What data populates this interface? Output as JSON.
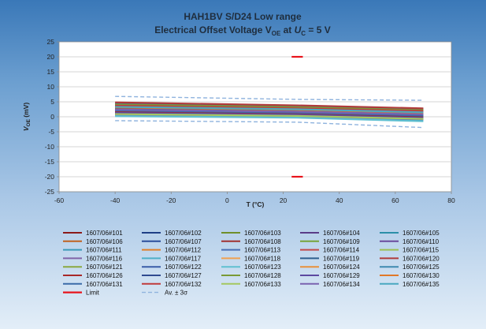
{
  "chart_data": {
    "type": "line",
    "title": "HAH1BV S/D24 Low range",
    "subtitle_parts": [
      "Electrical Offset Voltage V",
      "OE",
      "  at ",
      "U",
      "C",
      " = 5 V"
    ],
    "xlabel": "T (°C)",
    "ylabel_parts": [
      "V",
      "OE",
      " (mV)"
    ],
    "xlim": [
      -60,
      80
    ],
    "ylim": [
      -25,
      25
    ],
    "xticks": [
      -60,
      -40,
      -20,
      0,
      20,
      40,
      60,
      80
    ],
    "yticks": [
      -25,
      -20,
      -15,
      -10,
      -5,
      0,
      5,
      10,
      15,
      20,
      25
    ],
    "grid": true,
    "legend_position": "bottom",
    "x": [
      -40,
      25,
      70
    ],
    "series": [
      {
        "name": "1607/06#101",
        "color": "#8b1a1a",
        "values": [
          3.5,
          2.5,
          1.5
        ]
      },
      {
        "name": "1607/06#102",
        "color": "#1f3f86",
        "values": [
          2.0,
          1.2,
          0.5
        ]
      },
      {
        "name": "1607/06#103",
        "color": "#6f8f2a",
        "values": [
          4.0,
          3.0,
          2.0
        ]
      },
      {
        "name": "1607/06#104",
        "color": "#5a3c88",
        "values": [
          1.5,
          0.8,
          -0.2
        ]
      },
      {
        "name": "1607/06#105",
        "color": "#2b8fa8",
        "values": [
          3.0,
          2.2,
          1.0
        ]
      },
      {
        "name": "1607/06#106",
        "color": "#c0621e",
        "values": [
          2.5,
          1.8,
          0.8
        ]
      },
      {
        "name": "1607/06#107",
        "color": "#2a4d9a",
        "values": [
          4.5,
          3.6,
          2.6
        ]
      },
      {
        "name": "1607/06#108",
        "color": "#a13030",
        "values": [
          1.0,
          0.4,
          -0.5
        ]
      },
      {
        "name": "1607/06#109",
        "color": "#77a33a",
        "values": [
          3.8,
          2.9,
          1.8
        ]
      },
      {
        "name": "1607/06#110",
        "color": "#6a4a9c",
        "values": [
          2.2,
          1.5,
          0.6
        ]
      },
      {
        "name": "1607/06#111",
        "color": "#3d9ab8",
        "values": [
          0.5,
          0.0,
          -1.0
        ]
      },
      {
        "name": "1607/06#112",
        "color": "#e0802a",
        "values": [
          2.8,
          2.0,
          1.2
        ]
      },
      {
        "name": "1607/06#113",
        "color": "#4a6fb5",
        "values": [
          4.2,
          3.3,
          2.3
        ]
      },
      {
        "name": "1607/06#114",
        "color": "#c24a4a",
        "values": [
          1.8,
          1.0,
          0.0
        ]
      },
      {
        "name": "1607/06#115",
        "color": "#9bbf55",
        "values": [
          3.2,
          2.4,
          1.4
        ]
      },
      {
        "name": "1607/06#116",
        "color": "#8064a8",
        "values": [
          0.8,
          0.2,
          -0.8
        ]
      },
      {
        "name": "1607/06#117",
        "color": "#4fb0c8",
        "values": [
          2.6,
          1.9,
          0.9
        ]
      },
      {
        "name": "1607/06#118",
        "color": "#f0a050",
        "values": [
          3.6,
          2.8,
          1.7
        ]
      },
      {
        "name": "1607/06#119",
        "color": "#2e5f8e",
        "values": [
          1.2,
          0.6,
          -0.3
        ]
      },
      {
        "name": "1607/06#120",
        "color": "#b03a3a",
        "values": [
          4.8,
          3.8,
          2.8
        ]
      },
      {
        "name": "1607/06#121",
        "color": "#8aa840",
        "values": [
          2.3,
          1.6,
          0.7
        ]
      },
      {
        "name": "1607/06#122",
        "color": "#3a5ca8",
        "values": [
          3.4,
          2.6,
          1.6
        ]
      },
      {
        "name": "1607/06#123",
        "color": "#5fc0d0",
        "values": [
          0.2,
          -0.3,
          -1.5
        ]
      },
      {
        "name": "1607/06#124",
        "color": "#e8903a",
        "values": [
          2.9,
          2.1,
          1.1
        ]
      },
      {
        "name": "1607/06#125",
        "color": "#3e8ab0",
        "values": [
          3.9,
          3.0,
          2.1
        ]
      },
      {
        "name": "1607/06#126",
        "color": "#a82828",
        "values": [
          1.6,
          0.9,
          0.0
        ]
      },
      {
        "name": "1607/06#127",
        "color": "#2f4a90",
        "values": [
          2.7,
          1.9,
          1.0
        ]
      },
      {
        "name": "1607/06#128",
        "color": "#7a9a35",
        "values": [
          4.1,
          3.2,
          2.2
        ]
      },
      {
        "name": "1607/06#129",
        "color": "#5c48a0",
        "values": [
          1.3,
          0.7,
          -0.4
        ]
      },
      {
        "name": "1607/06#130",
        "color": "#e07828",
        "values": [
          3.1,
          2.3,
          1.3
        ]
      },
      {
        "name": "1607/06#131",
        "color": "#3a6aa8",
        "values": [
          2.1,
          1.4,
          0.4
        ]
      },
      {
        "name": "1607/06#132",
        "color": "#c03a3a",
        "values": [
          3.7,
          2.8,
          1.9
        ]
      },
      {
        "name": "1607/06#133",
        "color": "#a4c860",
        "values": [
          0.9,
          0.3,
          -0.7
        ]
      },
      {
        "name": "1607/06#134",
        "color": "#7a62b0",
        "values": [
          2.4,
          1.7,
          0.8
        ]
      },
      {
        "name": "1607/06#135",
        "color": "#4aa8c0",
        "values": [
          3.3,
          2.5,
          1.5
        ]
      }
    ],
    "limit": {
      "name": "Limit",
      "color": "#e8141c",
      "upper": 20,
      "lower": -20,
      "x_range": [
        23,
        27
      ]
    },
    "av_sigma": {
      "name": "Av. ± 3σ",
      "color": "#8fb3de",
      "upper": [
        6.8,
        5.8,
        5.5
      ],
      "lower": [
        -1.3,
        -1.8,
        -3.6
      ]
    }
  }
}
